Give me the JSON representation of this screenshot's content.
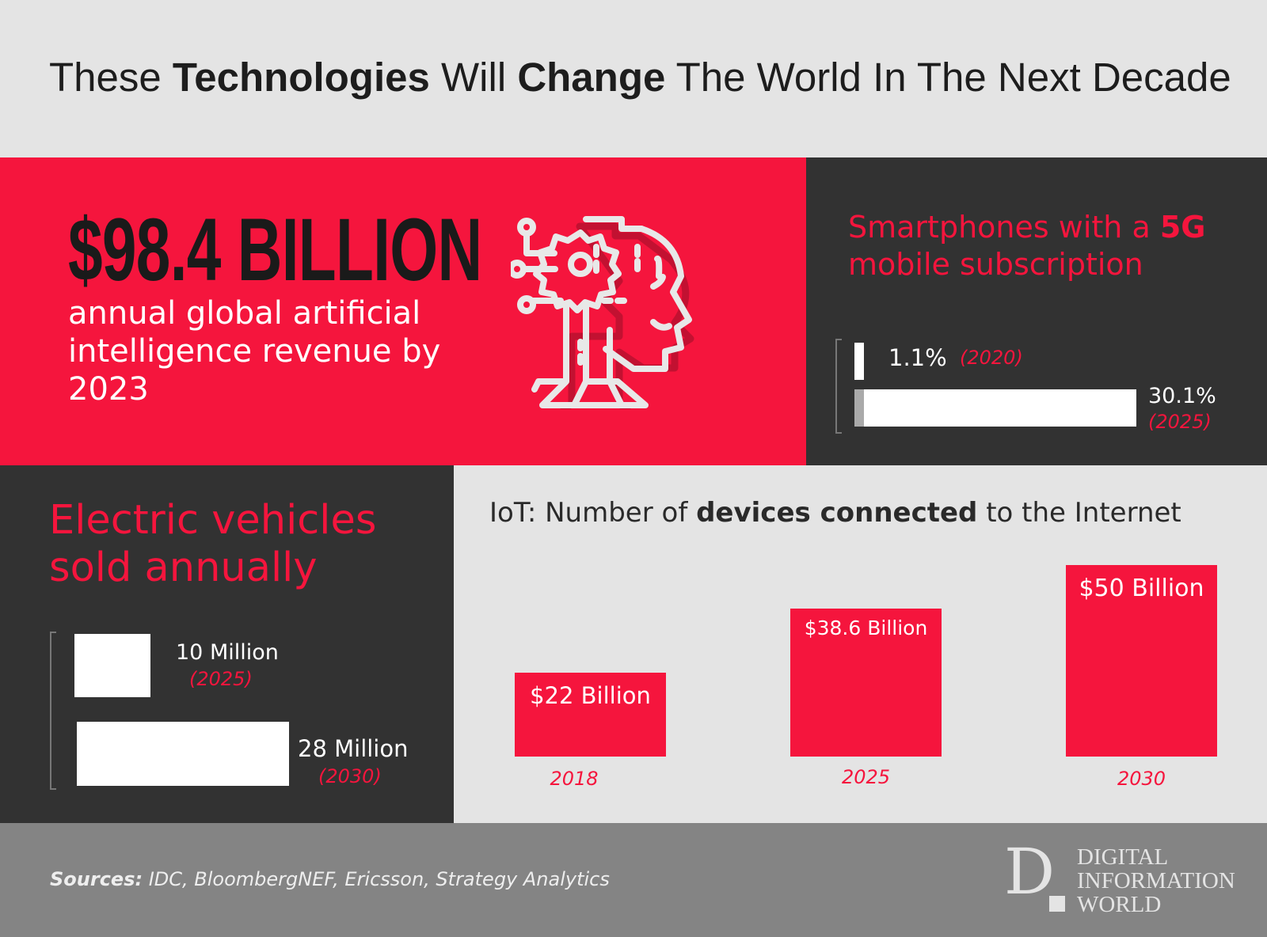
{
  "header": {
    "title_parts": [
      "These ",
      "Technologies",
      " Will ",
      "Change",
      " The World In The Next Decade"
    ]
  },
  "ai": {
    "headline": "$98.4 BILLION",
    "subtitle": "annual global artificial intelligence revenue by 2023",
    "icon": "ai-head-gear-icon"
  },
  "fiveg": {
    "title_pre": "Smartphones with a ",
    "title_bold": "5G",
    "title_post": " mobile subscription",
    "items": [
      {
        "value": "1.1%",
        "year": "(2020)",
        "percent": 1.1
      },
      {
        "value": "30.1%",
        "year": "(2025)",
        "percent": 30.1
      }
    ]
  },
  "ev": {
    "title": "Electric vehicles sold annually",
    "items": [
      {
        "value": "10 Million",
        "year": "(2025)",
        "millions": 10
      },
      {
        "value": "28 Million",
        "year": "(2030)",
        "millions": 28
      }
    ]
  },
  "iot": {
    "title_pre": "IoT: Number of ",
    "title_bold": "devices connected",
    "title_post": " to the Internet"
  },
  "chart_data": {
    "type": "bar",
    "title": "IoT: Number of devices connected to the Internet",
    "categories": [
      "2018",
      "2025",
      "2030"
    ],
    "values": [
      22,
      38.6,
      50
    ],
    "data_labels": [
      "$22 Billion",
      "$38.6 Billion",
      "$50 Billion"
    ],
    "ylim": [
      0,
      50
    ],
    "color": "#f5153d"
  },
  "footer": {
    "sources_label": "Sources:",
    "sources": " IDC, BloombergNEF, Ericsson, Strategy Analytics",
    "logo_letter": "D",
    "logo_lines": [
      "DIGITAL",
      "INFORMATION",
      "WORLD"
    ]
  },
  "colors": {
    "red": "#f5153d",
    "dark": "#323232",
    "light": "#e4e4e4",
    "footer": "#848484"
  }
}
